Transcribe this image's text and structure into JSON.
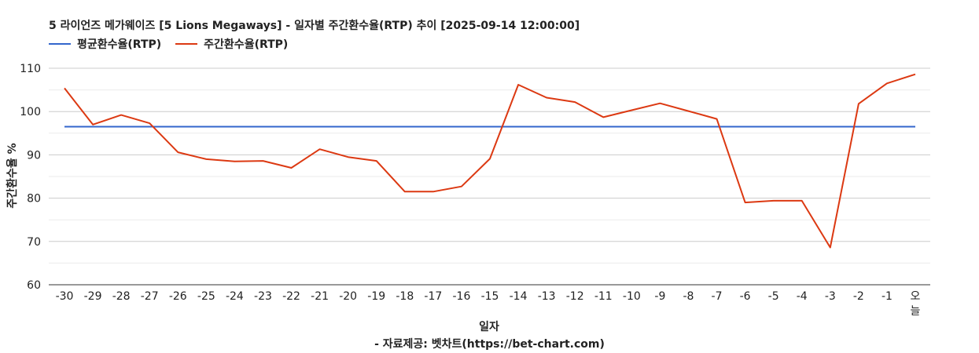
{
  "title": "5 라이언즈 메가웨이즈 [5 Lions Megaways] - 일자별 주간환수율(RTP) 추이 [2025-09-14 12:00:00]",
  "source": "- 자료제공: 벳차트(https://bet-chart.com)",
  "chart_data": {
    "type": "line",
    "xlabel": "일자",
    "ylabel": "주간환수율 %",
    "ylim": [
      60,
      110
    ],
    "yticks": [
      60,
      70,
      80,
      90,
      100,
      110
    ],
    "grid": true,
    "legend_position": "top-left",
    "categories": [
      "-30",
      "-29",
      "-28",
      "-27",
      "-26",
      "-25",
      "-24",
      "-23",
      "-22",
      "-21",
      "-20",
      "-19",
      "-18",
      "-17",
      "-16",
      "-15",
      "-14",
      "-13",
      "-12",
      "-11",
      "-10",
      "-9",
      "-8",
      "-7",
      "-6",
      "-5",
      "-4",
      "-3",
      "-2",
      "-1",
      "오늘"
    ],
    "series": [
      {
        "name": "평균환수율(RTP)",
        "color": "#3366cc",
        "values": [
          96.5,
          96.5,
          96.5,
          96.5,
          96.5,
          96.5,
          96.5,
          96.5,
          96.5,
          96.5,
          96.5,
          96.5,
          96.5,
          96.5,
          96.5,
          96.5,
          96.5,
          96.5,
          96.5,
          96.5,
          96.5,
          96.5,
          96.5,
          96.5,
          96.5,
          96.5,
          96.5,
          96.5,
          96.5,
          96.5,
          96.5
        ]
      },
      {
        "name": "주간환수율(RTP)",
        "color": "#dc3912",
        "values": [
          105.4,
          97.0,
          99.2,
          97.3,
          90.6,
          89.0,
          88.5,
          88.6,
          87.0,
          91.3,
          89.5,
          88.6,
          81.5,
          81.5,
          82.7,
          89.1,
          106.2,
          103.2,
          102.2,
          98.7,
          100.3,
          101.9,
          100.1,
          98.3,
          79.0,
          79.4,
          79.4,
          68.6,
          101.8,
          106.5,
          108.6
        ]
      }
    ]
  }
}
